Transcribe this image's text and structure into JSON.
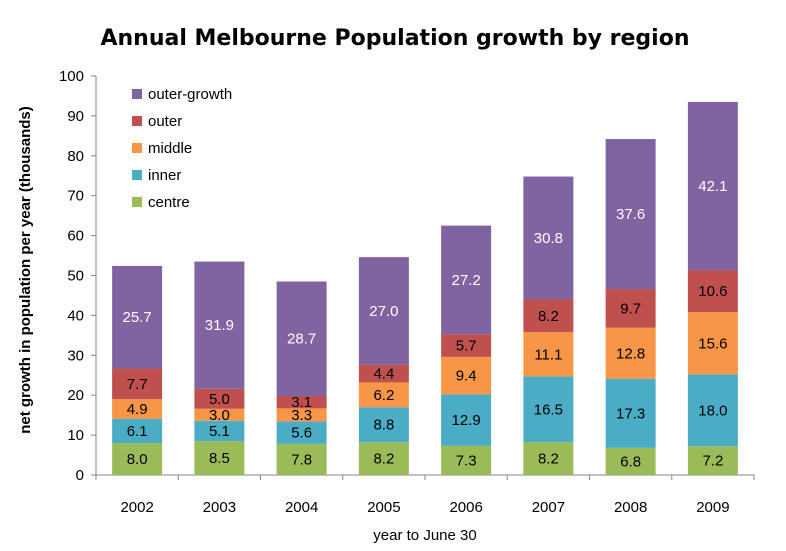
{
  "chart_data": {
    "type": "bar",
    "stacked": true,
    "title": "Annual Melbourne Population growth by region",
    "xlabel": "year to June 30",
    "ylabel": "net growth in population per year (thousands)",
    "ylim": [
      0,
      100
    ],
    "yticks": [
      0,
      10,
      20,
      30,
      40,
      50,
      60,
      70,
      80,
      90,
      100
    ],
    "grid": false,
    "legend_position": "top-left",
    "categories": [
      "2002",
      "2003",
      "2004",
      "2005",
      "2006",
      "2007",
      "2008",
      "2009"
    ],
    "series": [
      {
        "name": "centre",
        "color": "#9BBB59",
        "values": [
          8.0,
          8.5,
          7.8,
          8.2,
          7.3,
          8.2,
          6.8,
          7.2
        ],
        "labels": [
          "8.0",
          "8.5",
          "7.8",
          "8.2",
          "7.3",
          "8.2",
          "6.8",
          "7.2"
        ]
      },
      {
        "name": "inner",
        "color": "#4BACC6",
        "values": [
          6.1,
          5.1,
          5.6,
          8.8,
          12.9,
          16.5,
          17.3,
          18.0
        ],
        "labels": [
          "6.1",
          "5.1",
          "5.6",
          "8.8",
          "12.9",
          "16.5",
          "17.3",
          "18.0"
        ]
      },
      {
        "name": "middle",
        "color": "#F79646",
        "values": [
          4.9,
          3.0,
          3.3,
          6.2,
          9.4,
          11.1,
          12.8,
          15.6
        ],
        "labels": [
          "4.9",
          "3.0",
          "3.3",
          "6.2",
          "9.4",
          "11.1",
          "12.8",
          "15.6"
        ]
      },
      {
        "name": "outer",
        "color": "#C0504D",
        "values": [
          7.7,
          5.0,
          3.1,
          4.4,
          5.7,
          8.2,
          9.7,
          10.6
        ],
        "labels": [
          "7.7",
          "5.0",
          "3.1",
          "4.4",
          "5.7",
          "8.2",
          "9.7",
          "10.6"
        ]
      },
      {
        "name": "outer-growth",
        "color": "#8064A2",
        "values": [
          25.7,
          31.9,
          28.7,
          27.0,
          27.2,
          30.8,
          37.6,
          42.1
        ],
        "labels": [
          "25.7",
          "31.9",
          "28.7",
          "27.0",
          "27.2",
          "30.8",
          "37.6",
          "42.1"
        ]
      }
    ]
  }
}
